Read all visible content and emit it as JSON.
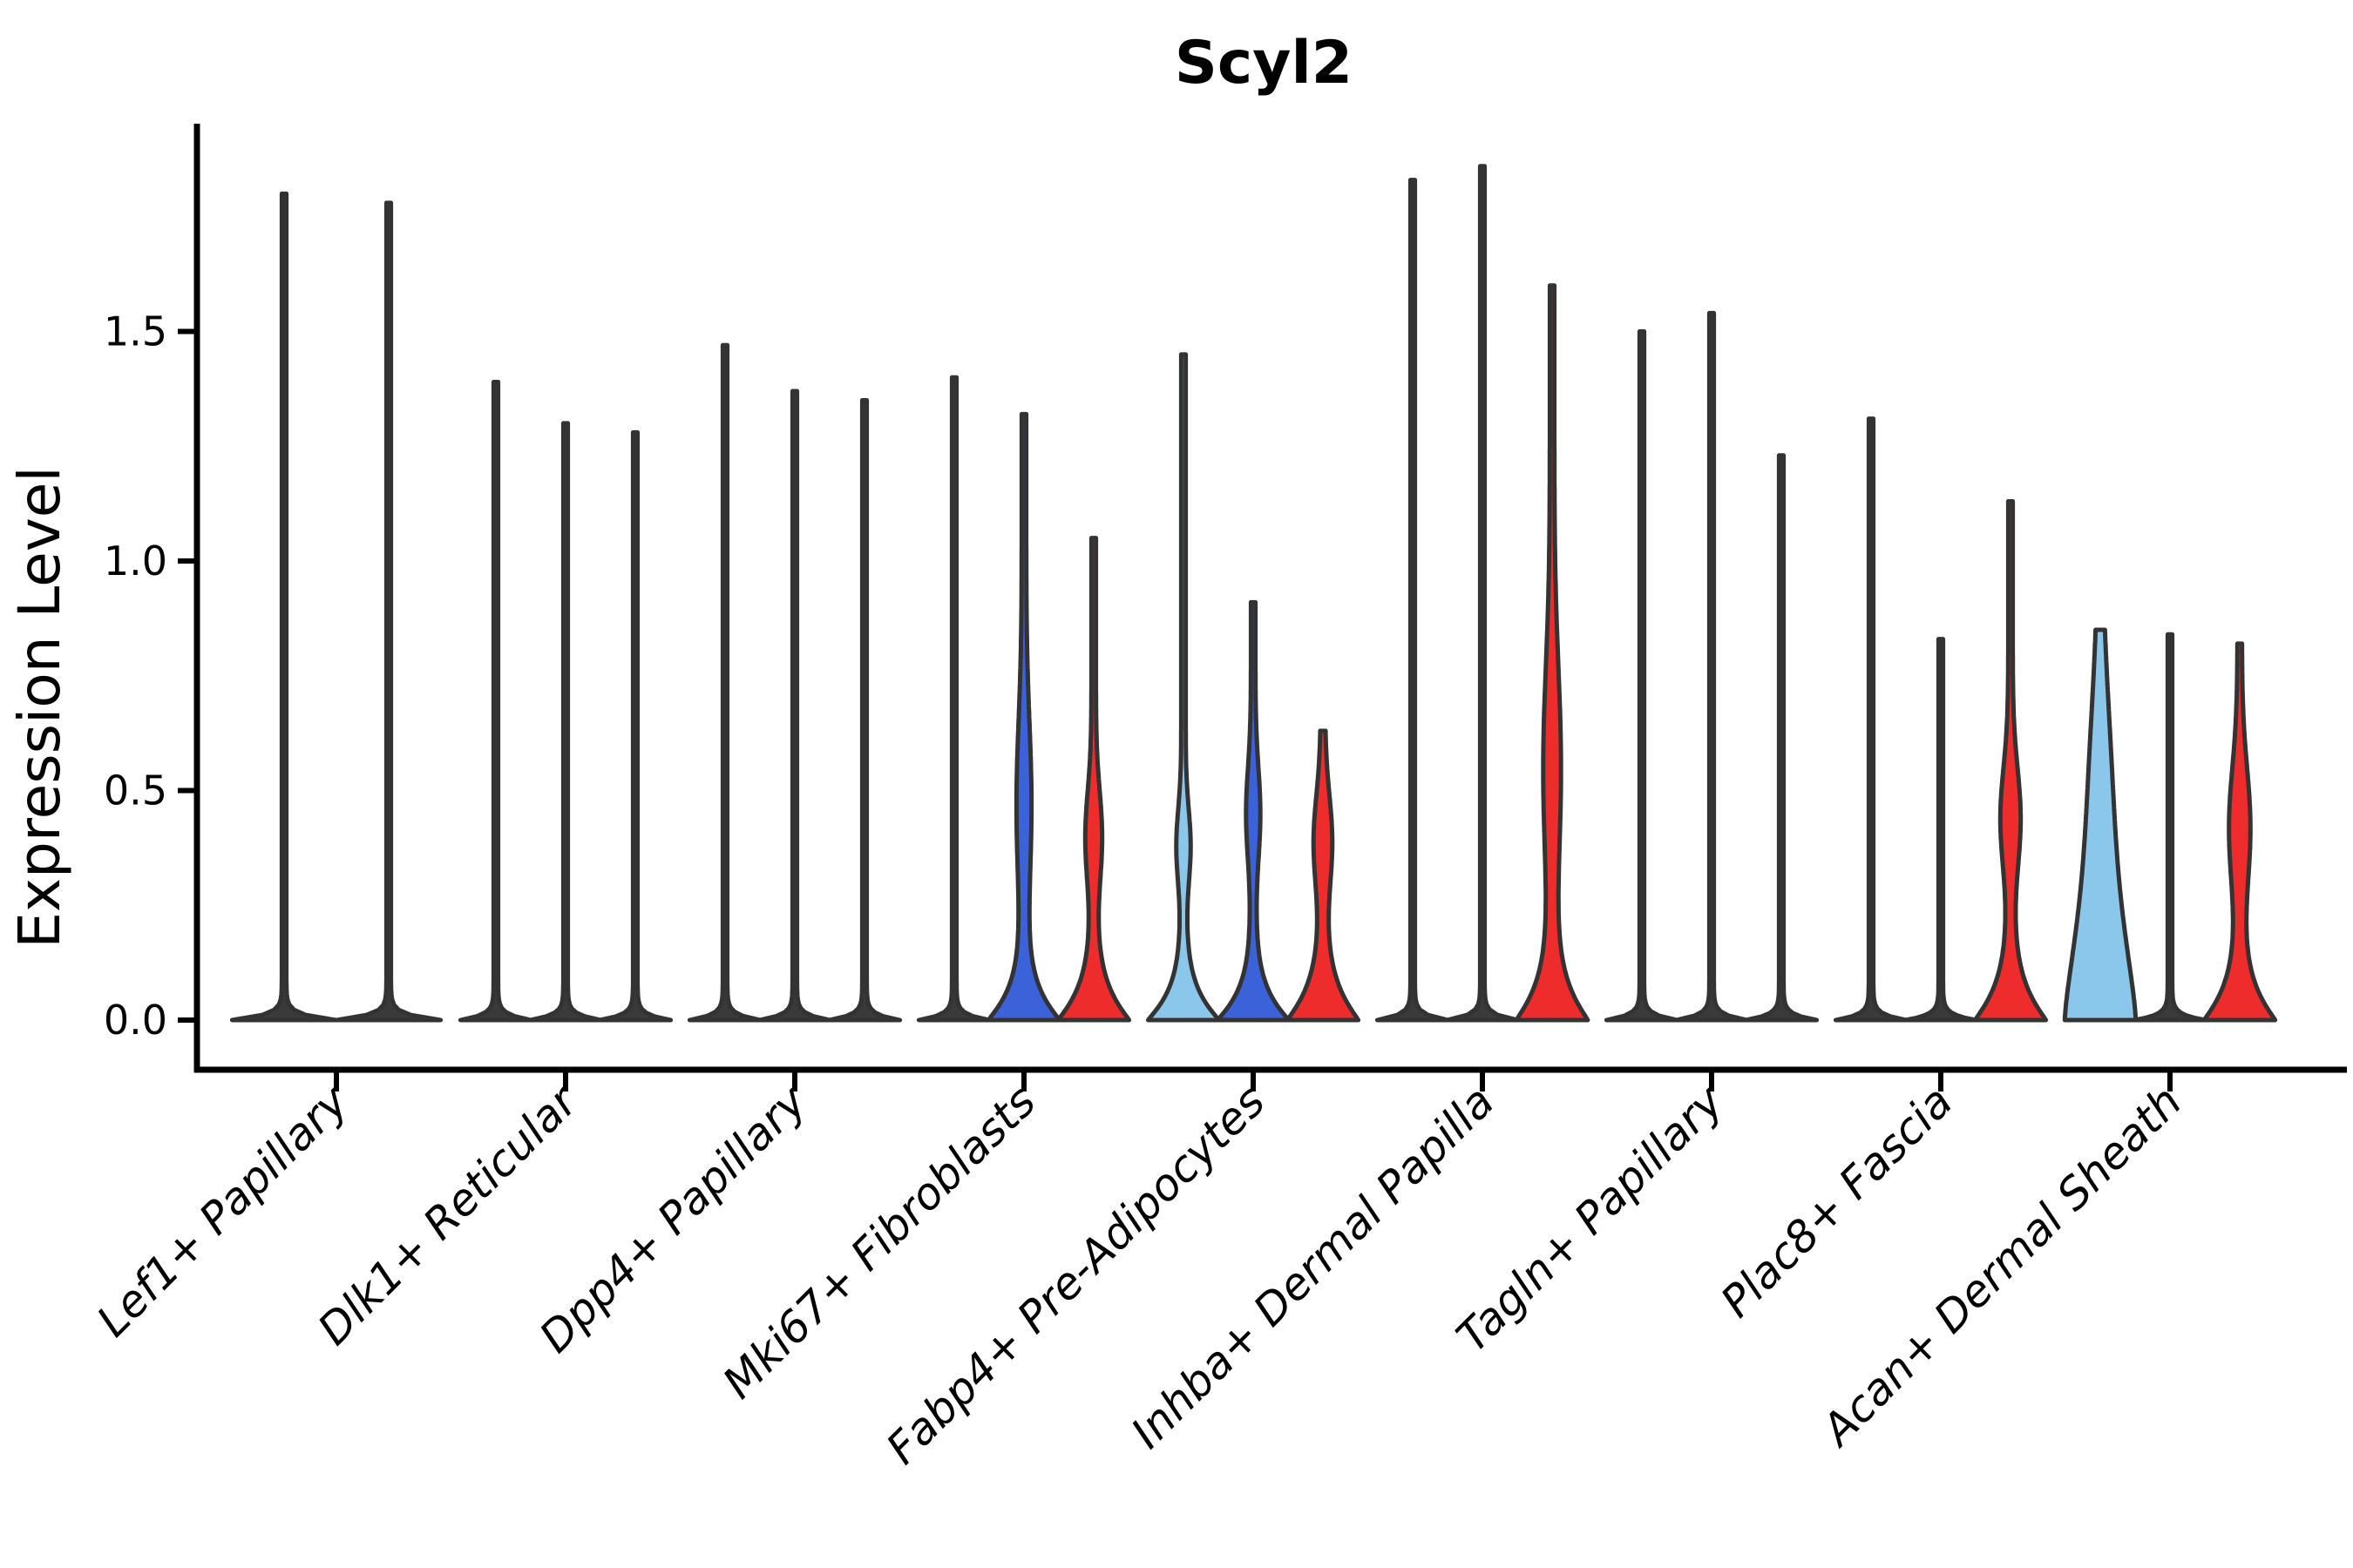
{
  "chart_data": {
    "type": "violin",
    "title": "Scyl2",
    "ylabel": "Expression Level",
    "xlabel": "",
    "ylim": [
      0,
      1.96
    ],
    "yticks": [
      0.0,
      0.5,
      1.0,
      1.5
    ],
    "grid": false,
    "legend": "none",
    "categories": [
      "Lef1+ Papillary",
      "Dlk1+ Reticular",
      "Dpp4+ Papillary",
      "Mki67+ Fibroblasts",
      "Fabp4+ Pre-Adipocytes",
      "Inhba+ Dermal Papilla",
      "Tagln+ Papillary",
      "Plac8+ Fascia",
      "Acan+ Dermal Sheath"
    ],
    "palette": {
      "dark": "#3a3a3a",
      "blue": "#3b62d8",
      "light_blue": "#8bc7ea",
      "red": "#ee2c2c",
      "outline": "#333333"
    },
    "groups": [
      {
        "category": "Lef1+ Papillary",
        "violins": [
          {
            "split": "dark",
            "max": 1.8,
            "base_width": 0.95,
            "base_decay": 0.012,
            "base_power": 1.0,
            "bump": null
          },
          {
            "split": "dark",
            "max": 1.78,
            "base_width": 0.95,
            "base_decay": 0.012,
            "base_power": 1.0,
            "bump": null
          }
        ]
      },
      {
        "category": "Dlk1+ Reticular",
        "violins": [
          {
            "split": "dark",
            "max": 1.39,
            "base_width": 0.95,
            "base_decay": 0.012,
            "base_power": 1.0,
            "bump": null
          },
          {
            "split": "dark",
            "max": 1.3,
            "base_width": 0.95,
            "base_decay": 0.012,
            "base_power": 1.0,
            "bump": null
          },
          {
            "split": "dark",
            "max": 1.28,
            "base_width": 0.95,
            "base_decay": 0.012,
            "base_power": 1.0,
            "bump": null
          }
        ]
      },
      {
        "category": "Dpp4+ Papillary",
        "violins": [
          {
            "split": "dark",
            "max": 1.47,
            "base_width": 0.95,
            "base_decay": 0.012,
            "base_power": 1.0,
            "bump": null
          },
          {
            "split": "dark",
            "max": 1.37,
            "base_width": 0.95,
            "base_decay": 0.012,
            "base_power": 1.0,
            "bump": null
          },
          {
            "split": "dark",
            "max": 1.35,
            "base_width": 0.95,
            "base_decay": 0.012,
            "base_power": 1.0,
            "bump": null
          }
        ]
      },
      {
        "category": "Mki67+ Fibroblasts",
        "violins": [
          {
            "split": "dark",
            "max": 1.4,
            "base_width": 0.95,
            "base_decay": 0.012,
            "base_power": 1.0,
            "bump": null
          },
          {
            "split": "blue",
            "max": 1.32,
            "base_width": 0.95,
            "base_decay": 0.075,
            "base_power": 1.1,
            "bump": {
              "center": 0.47,
              "sigma": 0.18,
              "amp": 0.15
            }
          },
          {
            "split": "red",
            "max": 1.05,
            "base_width": 0.95,
            "base_decay": 0.08,
            "base_power": 1.1,
            "bump": {
              "center": 0.4,
              "sigma": 0.1,
              "amp": 0.175
            }
          }
        ]
      },
      {
        "category": "Fabp4+ Pre-Adipocytes",
        "violins": [
          {
            "split": "light_blue",
            "max": 1.45,
            "base_width": 0.95,
            "base_decay": 0.07,
            "base_power": 1.1,
            "bump": {
              "center": 0.38,
              "sigma": 0.08,
              "amp": 0.14
            }
          },
          {
            "split": "blue",
            "max": 0.91,
            "base_width": 0.95,
            "base_decay": 0.07,
            "base_power": 1.1,
            "bump": {
              "center": 0.45,
              "sigma": 0.1,
              "amp": 0.14
            }
          },
          {
            "split": "red",
            "max": 0.63,
            "base_width": 0.95,
            "base_decay": 0.085,
            "base_power": 1.1,
            "bump": {
              "center": 0.39,
              "sigma": 0.1,
              "amp": 0.2
            }
          }
        ]
      },
      {
        "category": "Inhba+ Dermal Papilla",
        "violins": [
          {
            "split": "dark",
            "max": 1.83,
            "base_width": 0.95,
            "base_decay": 0.012,
            "base_power": 1.0,
            "bump": null
          },
          {
            "split": "dark",
            "max": 1.86,
            "base_width": 0.95,
            "base_decay": 0.012,
            "base_power": 1.0,
            "bump": null
          },
          {
            "split": "red",
            "max": 1.6,
            "base_width": 0.95,
            "base_decay": 0.09,
            "base_power": 1.1,
            "bump": {
              "center": 0.55,
              "sigma": 0.22,
              "amp": 0.19
            }
          }
        ]
      },
      {
        "category": "Tagln+ Papillary",
        "violins": [
          {
            "split": "dark",
            "max": 1.5,
            "base_width": 0.95,
            "base_decay": 0.012,
            "base_power": 1.0,
            "bump": null
          },
          {
            "split": "dark",
            "max": 1.54,
            "base_width": 0.95,
            "base_decay": 0.012,
            "base_power": 1.0,
            "bump": null
          },
          {
            "split": "dark",
            "max": 1.23,
            "base_width": 0.95,
            "base_decay": 0.012,
            "base_power": 1.0,
            "bump": null
          }
        ]
      },
      {
        "category": "Plac8+ Fascia",
        "violins": [
          {
            "split": "dark",
            "max": 1.31,
            "base_width": 0.95,
            "base_decay": 0.012,
            "base_power": 1.0,
            "bump": null
          },
          {
            "split": "dark",
            "max": 0.83,
            "base_width": 0.95,
            "base_decay": 0.012,
            "base_power": 1.0,
            "bump": null
          },
          {
            "split": "red",
            "max": 1.13,
            "base_width": 0.95,
            "base_decay": 0.085,
            "base_power": 1.1,
            "bump": {
              "center": 0.44,
              "sigma": 0.11,
              "amp": 0.225
            }
          }
        ]
      },
      {
        "category": "Acan+ Dermal Sheath",
        "violins": [
          {
            "split": "light_blue",
            "max": 0.85,
            "base_width": 0.95,
            "base_decay": 0.35,
            "base_power": 1.4,
            "bump": {
              "center": 0.55,
              "sigma": 0.2,
              "amp": 0.125
            }
          },
          {
            "split": "dark",
            "max": 0.84,
            "base_width": 0.95,
            "base_decay": 0.012,
            "base_power": 1.0,
            "bump": null
          },
          {
            "split": "red",
            "max": 0.82,
            "base_width": 0.95,
            "base_decay": 0.085,
            "base_power": 1.1,
            "bump": {
              "center": 0.42,
              "sigma": 0.13,
              "amp": 0.24
            }
          }
        ]
      }
    ]
  }
}
